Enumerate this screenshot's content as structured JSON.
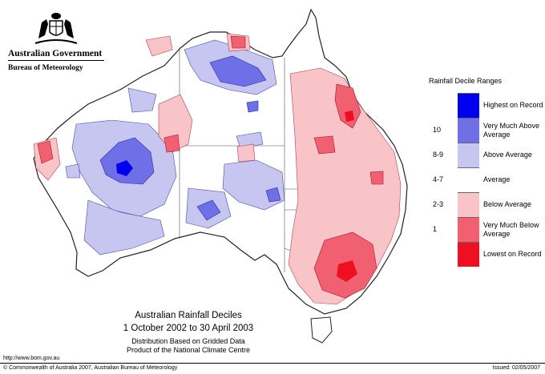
{
  "header": {
    "government": "Australian Government",
    "bureau": "Bureau of Meteorology",
    "crest_icon": "commonwealth-coat-of-arms"
  },
  "legend": {
    "title": "Rainfall Decile Ranges",
    "entries": [
      {
        "range": "",
        "label": "Highest on Record",
        "color": "#0000ee"
      },
      {
        "range": "10",
        "label": "Very Much Above Average",
        "color": "#6f6fe8"
      },
      {
        "range": "8-9",
        "label": "Above Average",
        "color": "#c6c6f0"
      },
      {
        "range": "4-7",
        "label": "Average",
        "color": "#ffffff"
      },
      {
        "range": "2-3",
        "label": "Below Average",
        "color": "#f8c4c8"
      },
      {
        "range": "1",
        "label": "Very Much Below Average",
        "color": "#f06070"
      },
      {
        "range": "",
        "label": "Lowest on Record",
        "color": "#ee1020"
      }
    ]
  },
  "caption": {
    "title": "Australian Rainfall Deciles",
    "period": "1 October 2002 to 30 April 2003",
    "line3": "Distribution Based on Gridded Data",
    "line4": "Product of the National Climate Centre"
  },
  "footer": {
    "url": "http://www.bom.gov.au",
    "copyright": "© Commonwealth of Australia 2007, Australian Bureau of Meteorology",
    "issued": "Issued: 02/05/2007"
  }
}
